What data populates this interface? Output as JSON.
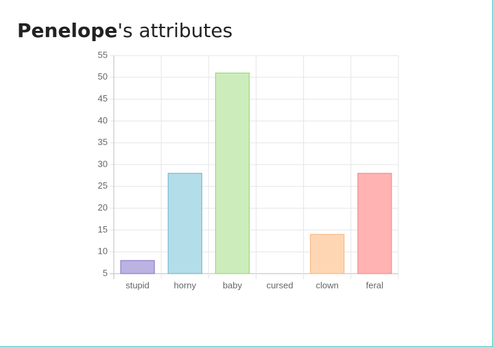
{
  "header": {
    "name": "Penelope",
    "suffix": "'s attributes"
  },
  "chart_data": {
    "type": "bar",
    "categories": [
      "stupid",
      "horny",
      "baby",
      "cursed",
      "clown",
      "feral"
    ],
    "values": [
      8,
      28,
      51,
      5,
      14,
      28
    ],
    "colors": [
      "#bcb3e3",
      "#b3dde9",
      "#ccedbb",
      "#fff0b3",
      "#fed6b3",
      "#ffb3b3"
    ],
    "border_colors": [
      "#7b6bc4",
      "#6aadcc",
      "#8fd46b",
      "#f0cf5a",
      "#f5b27a",
      "#f07f7f"
    ],
    "ylim": [
      5,
      55
    ],
    "yticks": [
      5,
      10,
      15,
      20,
      25,
      30,
      35,
      40,
      45,
      50,
      55
    ],
    "grid": true
  }
}
